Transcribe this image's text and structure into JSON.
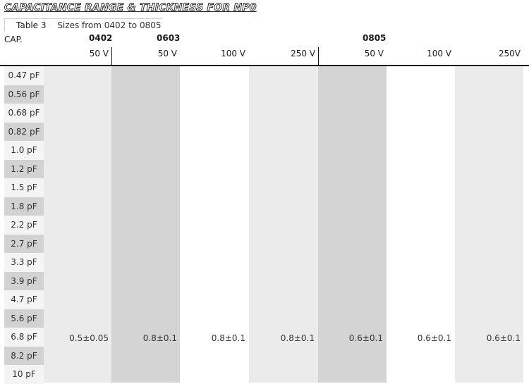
{
  "title": "CAPACITANCE RANGE & THICKNESS FOR NP0",
  "table_caption": {
    "number": "Table 3",
    "text": "Sizes from 0402 to 0805"
  },
  "cap_header": "CAP.",
  "sizes": [
    "0402",
    "0603",
    "0805"
  ],
  "voltages": [
    "50 V",
    "50 V",
    "100 V",
    "250 V",
    "50 V",
    "100 V",
    "250V"
  ],
  "rows": [
    "0.47 pF",
    "0.56 pF",
    "0.68 pF",
    "0.82 pF",
    "1.0 pF",
    "1.2 pF",
    "1.5 pF",
    "1.8 pF",
    "2.2 pF",
    "2.7 pF",
    "3.3 pF",
    "3.9 pF",
    "4.7 pF",
    "5.6 pF",
    "6.8 pF",
    "8.2 pF",
    "10 pF"
  ],
  "thickness": [
    "0.5±0.05",
    "0.8±0.1",
    "0.8±0.1",
    "0.8±0.1",
    "0.6±0.1",
    "0.6±0.1",
    "0.6±0.1"
  ],
  "colors": {
    "band_light": "#ebebeb",
    "band_dark": "#d4d4d4",
    "row_dark": "#d2d2d2",
    "row_light": "#f4f4f4"
  }
}
